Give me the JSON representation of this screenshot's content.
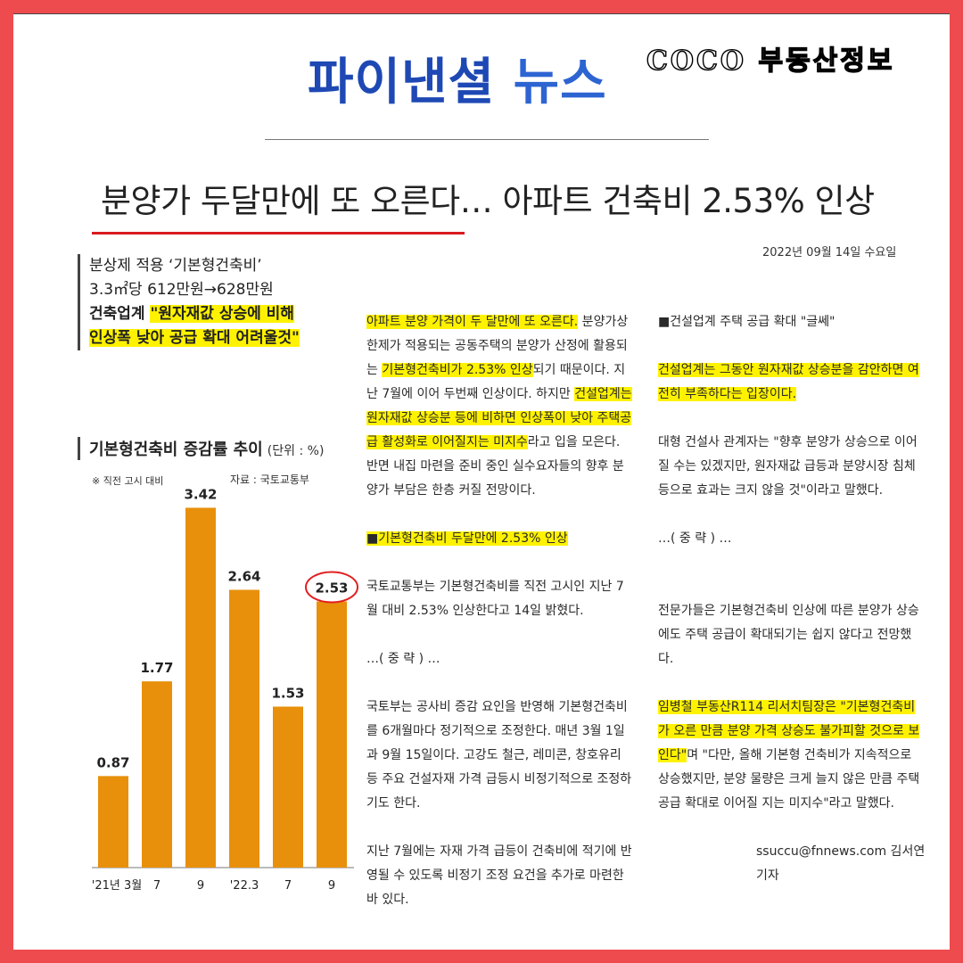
{
  "masthead": {
    "logo_main": "파이낸셜",
    "logo_news": "뉴스",
    "stamp": "COCO 부동산정보"
  },
  "headline": "분양가 두달만에 또 오른다… 아파트 건축비 2.53% 인상",
  "date": "2022년 09월 14일 수요일",
  "summary": {
    "line1": "분상제 적용 ‘기본형건축비’",
    "line2": "3.3㎡당 612만원→628만원",
    "line3_a": "건축업계 ",
    "line3_b": "\"원자재값 상승에 비해",
    "line4": "인상폭 낮아 공급 확대 어려울것\""
  },
  "chart_data": {
    "type": "bar",
    "title": "기본형건축비 증감률 추이",
    "unit": "(단위 : %)",
    "note": "※ 직전 고시 대비",
    "source": "자료 : 국토교통부",
    "categories": [
      "'21년 3월",
      "7",
      "9",
      "'22.3",
      "7",
      "9"
    ],
    "values": [
      0.87,
      1.77,
      3.42,
      2.64,
      1.53,
      2.53
    ],
    "value_labels": [
      "0.87",
      "1.77",
      "3.42",
      "2.64",
      "1.53",
      "2.53"
    ],
    "bar_color": "#e8900c",
    "highlight_color": "#e02020",
    "highlight_index": 5
  },
  "article_col2": {
    "p1": [
      {
        "t": "아파트 분양 가격이 두 달만에 또 오른다.",
        "h": true
      },
      {
        "t": " 분양가상한제가 적용되는 공동주택의 분양가 산정에 활용되는 ",
        "h": false
      },
      {
        "t": "기본형건축비가 2.53% 인상",
        "h": true
      },
      {
        "t": "되기 때문이다. 지난 7월에 이어 두번째 인상이다. 하지만 ",
        "h": false
      },
      {
        "t": "건설업계는 원자재값 상승분 등에 비하면 인상폭이 낮아 주택공급 활성화로 이어질지는 미지수",
        "h": true
      },
      {
        "t": "라고 입을 모은다. 반면 내집 마련을 준비 중인 실수요자들의 향후 분양가 부담은 한층 커질 전망이다.",
        "h": false
      }
    ],
    "sub": "■기본형건축비 두달만에 2.53% 인상",
    "p2": "국토교통부는 기본형건축비를 직전 고시인 지난 7월 대비 2.53% 인상한다고 14일 밝혔다.",
    "omit": "…( 중 략 ) …",
    "p3": "국토부는 공사비 증감 요인을 반영해 기본형건축비를 6개월마다 정기적으로 조정한다. 매년 3월 1일과 9월 15일이다. 고강도 철근, 레미콘, 창호유리 등 주요 건설자재 가격 급등시 비정기적으로 조정하기도 한다.",
    "p4": "지난 7월에는 자재 가격 급등이 건축비에 적기에 반영될 수 있도록 비정기 조정 요건을 추가로 마련한 바 있다."
  },
  "article_col3": {
    "sub": "■건설업계 주택 공급 확대 \"글쎄\"",
    "p1": "건설업계는 그동안 원자재값 상승분을 감안하면 여전히 부족하다는 입장이다.",
    "p2": "대형 건설사 관계자는 \"향후 분양가 상승으로 이어질 수는 있겠지만, 원자재값 급등과 분양시장 침체 등으로 효과는 크지 않을 것\"이라고 말했다.",
    "omit": "…( 중 략 ) …",
    "p3": "전문가들은 기본형건축비 인상에 따른 분양가 상승에도 주택 공급이 확대되기는 쉽지 않다고 전망했다.",
    "p4_hl": "임병철 부동산R114 리서치팀장은 \"기본형건축비가 오른 만큼 분양 가격 상승도 불가피할 것으로 보인다\"",
    "p4_rest": "며 \"다만, 올해 기본형 건축비가 지속적으로 상승했지만, 분양 물량은 크게 늘지 않은 만큼 주택 공급 확대로 이어질 지는 미지수\"라고 말했다.",
    "byline": "ssuccu@fnnews.com 김서연 기자"
  }
}
